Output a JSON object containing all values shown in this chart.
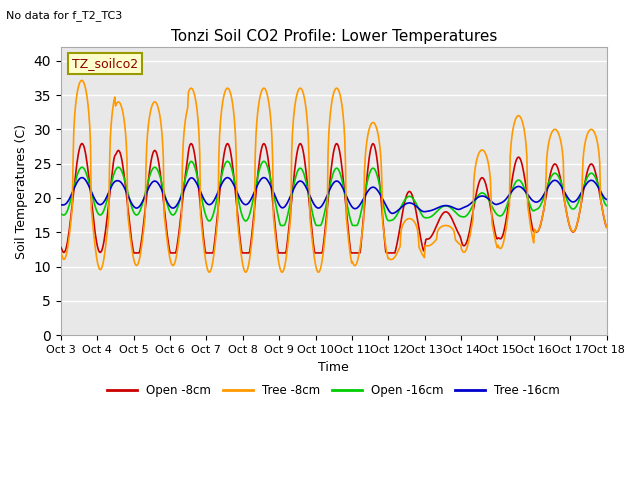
{
  "title": "Tonzi Soil CO2 Profile: Lower Temperatures",
  "subtitle": "No data for f_T2_TC3",
  "legend_label": "TZ_soilco2",
  "ylabel": "Soil Temperatures (C)",
  "xlabel": "Time",
  "ylim": [
    0,
    42
  ],
  "yticks": [
    0,
    5,
    10,
    15,
    20,
    25,
    30,
    35,
    40
  ],
  "xtick_labels": [
    "Oct 3",
    "Oct 4",
    "Oct 5",
    "Oct 6",
    "Oct 7",
    "Oct 8",
    "Oct 9",
    "Oct 10",
    "Oct 11",
    "Oct 12",
    "Oct 13",
    "Oct 14",
    "Oct 15",
    "Oct 16",
    "Oct 17",
    "Oct 18"
  ],
  "colors": {
    "open8": "#cc0000",
    "tree8": "#ff9900",
    "open16": "#00cc00",
    "tree16": "#0000cc"
  },
  "legend_entries": [
    "Open -8cm",
    "Tree -8cm",
    "Open -16cm",
    "Tree -16cm"
  ],
  "bg_color": "#e8e8e8",
  "fig_color": "#ffffff",
  "title_fontsize": 11,
  "axis_fontsize": 9,
  "tick_fontsize": 8
}
